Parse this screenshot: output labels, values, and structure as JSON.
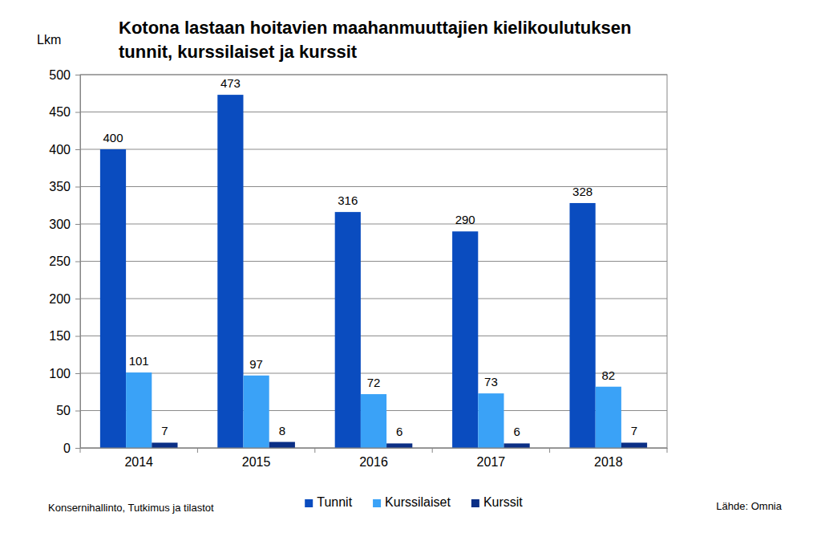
{
  "chart_data": {
    "type": "bar",
    "title": [
      "Kotona lastaan hoitavien maahanmuuttajien kielikoulutuksen",
      "tunnit, kurssilaiset ja kurssit"
    ],
    "y_label": "Lkm",
    "categories": [
      "2014",
      "2015",
      "2016",
      "2017",
      "2018"
    ],
    "series": [
      {
        "name": "Tunnit",
        "color": "#0a4cbf",
        "values": [
          400,
          473,
          316,
          290,
          328
        ]
      },
      {
        "name": "Kurssilaiset",
        "color": "#3aa2f7",
        "values": [
          101,
          97,
          72,
          73,
          82
        ]
      },
      {
        "name": "Kurssit",
        "color": "#0b2f86",
        "values": [
          7,
          8,
          6,
          6,
          7
        ]
      }
    ],
    "ylim": [
      0,
      500
    ],
    "yticks": [
      0,
      50,
      100,
      150,
      200,
      250,
      300,
      350,
      400,
      450,
      500
    ],
    "grid": true,
    "legend": "bottom",
    "data_labels": true,
    "annotations": [
      "Konsernihallinto, Tutkimus ja tilastot",
      "Lähde: Omnia"
    ]
  }
}
